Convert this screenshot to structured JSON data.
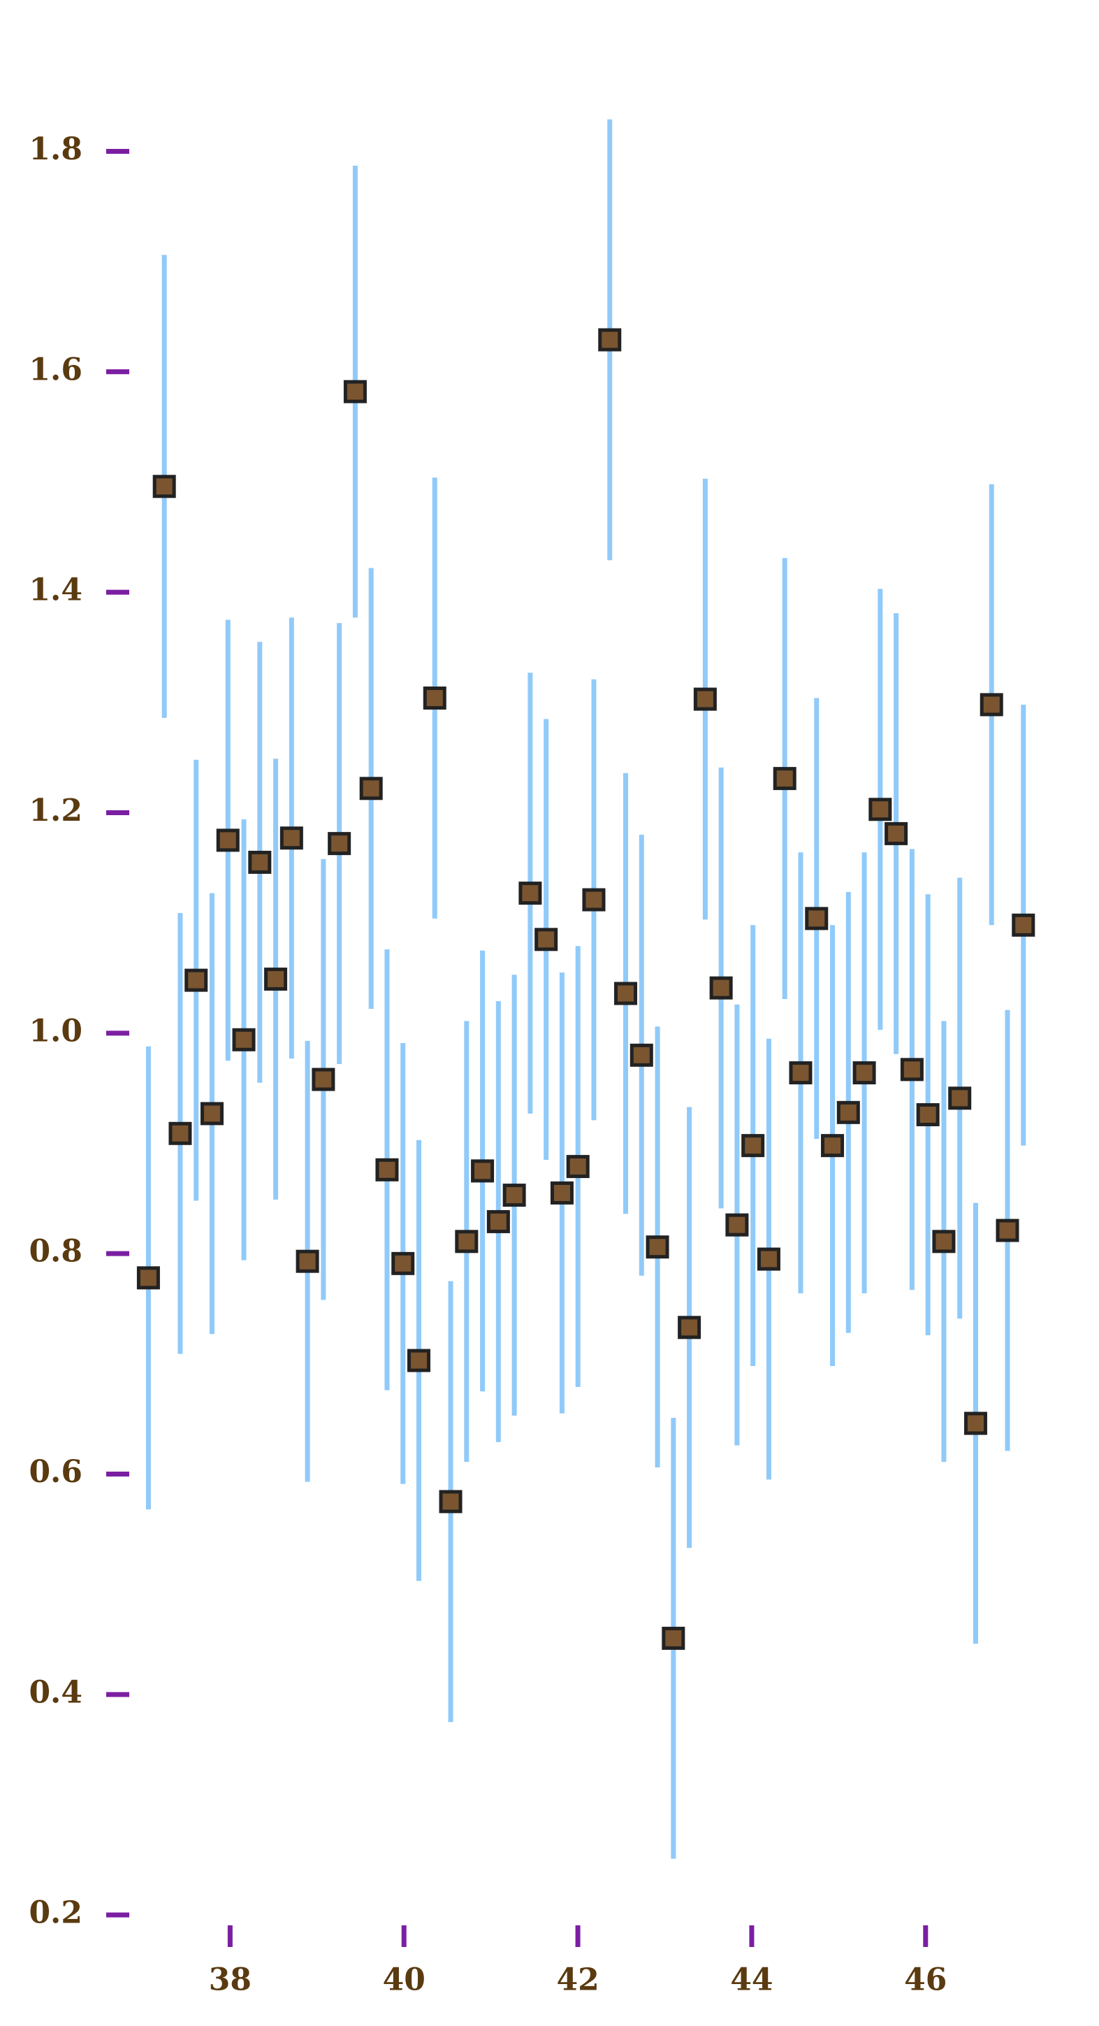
{
  "chart_data": {
    "type": "errorbar",
    "x": [
      37.06,
      37.243,
      37.426,
      37.609,
      37.792,
      37.975,
      38.158,
      38.341,
      38.524,
      38.707,
      38.89,
      39.073,
      39.256,
      39.439,
      39.622,
      39.805,
      39.988,
      40.171,
      40.354,
      40.537,
      40.72,
      40.903,
      41.086,
      41.269,
      41.452,
      41.635,
      41.818,
      42.001,
      42.184,
      42.367,
      42.55,
      42.733,
      42.916,
      43.099,
      43.282,
      43.465,
      43.648,
      43.831,
      44.014,
      44.197,
      44.38,
      44.563,
      44.746,
      44.929,
      45.112,
      45.295,
      45.478,
      45.661,
      45.844,
      46.027,
      46.21,
      46.393,
      46.576,
      46.759,
      46.942,
      47.125
    ],
    "values": [
      0.778,
      1.496,
      0.909,
      1.048,
      0.927,
      1.175,
      0.994,
      1.155,
      1.049,
      1.177,
      0.793,
      0.958,
      1.172,
      1.582,
      1.222,
      0.876,
      0.791,
      0.703,
      1.304,
      0.575,
      0.811,
      0.875,
      0.829,
      0.853,
      1.127,
      1.085,
      0.855,
      0.879,
      1.121,
      1.629,
      1.036,
      0.98,
      0.806,
      0.451,
      0.733,
      1.303,
      1.041,
      0.826,
      0.898,
      0.795,
      1.231,
      0.964,
      1.104,
      0.898,
      0.928,
      0.964,
      1.203,
      1.181,
      0.967,
      0.926,
      0.811,
      0.941,
      0.646,
      1.298,
      0.821,
      1.098
    ],
    "errors": [
      0.21,
      0.21,
      0.2,
      0.2,
      0.2,
      0.2,
      0.2,
      0.2,
      0.2,
      0.2,
      0.2,
      0.2,
      0.2,
      0.205,
      0.2,
      0.2,
      0.2,
      0.2,
      0.2,
      0.2,
      0.2,
      0.2,
      0.2,
      0.2,
      0.2,
      0.2,
      0.2,
      0.2,
      0.2,
      0.2,
      0.2,
      0.2,
      0.2,
      0.2,
      0.2,
      0.2,
      0.2,
      0.2,
      0.2,
      0.2,
      0.2,
      0.2,
      0.2,
      0.2,
      0.2,
      0.2,
      0.2,
      0.2,
      0.2,
      0.2,
      0.2,
      0.2,
      0.2,
      0.2,
      0.2,
      0.2
    ],
    "color": "#7a5530",
    "error_color": "#90caf9",
    "tick_color": "#7b1fa2",
    "label_color": "#5a3a10",
    "xlim": [
      36.9,
      47.4
    ],
    "ylim": [
      0.15,
      1.9
    ],
    "xticks": [
      38,
      40,
      42,
      44,
      46
    ],
    "yticks": [
      0.2,
      0.4,
      0.6,
      0.8,
      1.0,
      1.2,
      1.4,
      1.6,
      1.8
    ]
  }
}
